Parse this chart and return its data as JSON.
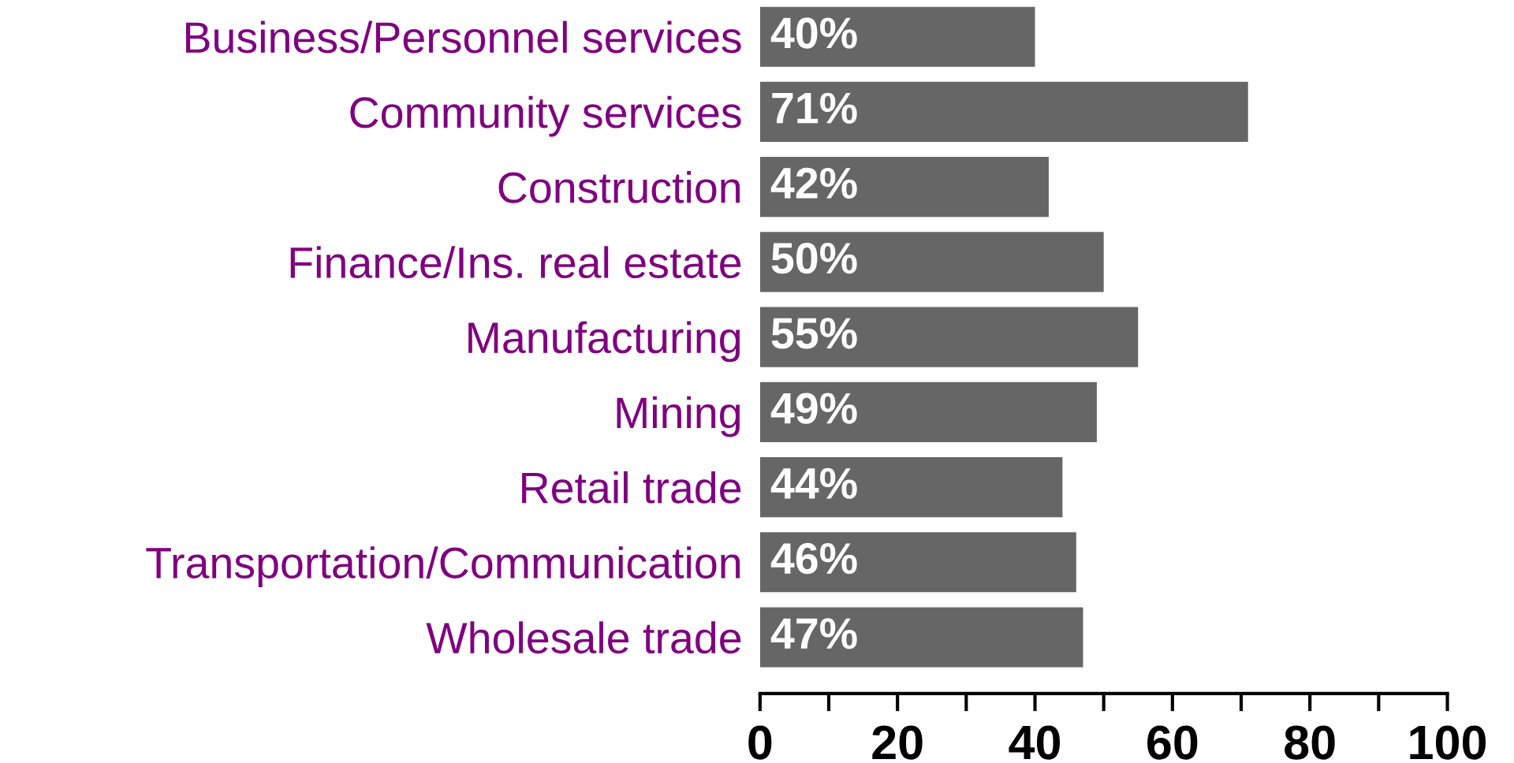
{
  "chart_data": {
    "type": "bar",
    "orientation": "horizontal",
    "categories": [
      "Business/Personnel services",
      "Community services",
      "Construction",
      "Finance/Ins. real estate",
      "Manufacturing",
      "Mining",
      "Retail trade",
      "Transportation/Communication",
      "Wholesale trade"
    ],
    "values": [
      40,
      71,
      42,
      50,
      55,
      49,
      44,
      46,
      47
    ],
    "value_labels": [
      "40%",
      "71%",
      "42%",
      "50%",
      "55%",
      "49%",
      "44%",
      "46%",
      "47%"
    ],
    "color": "#666666",
    "xlim": [
      0,
      100
    ],
    "xticks": [
      0,
      {
        "value": 10,
        "label": null
      },
      20,
      {
        "value": 30,
        "label": null
      },
      40,
      {
        "value": 50,
        "label": null
      },
      60,
      {
        "value": 70,
        "label": null
      },
      80,
      {
        "value": 90,
        "label": null
      },
      100
    ],
    "grid": false,
    "legend": false
  }
}
